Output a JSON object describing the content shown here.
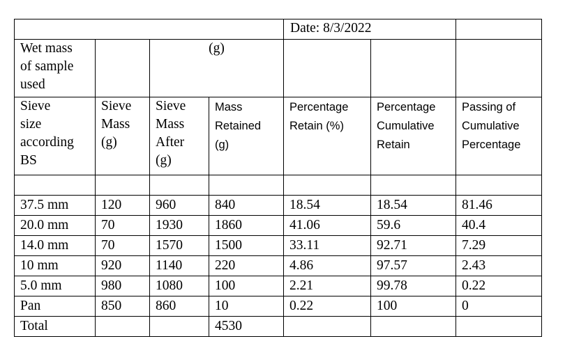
{
  "header": {
    "date": "Date: 8/3/2022",
    "wet_mass_label": "Wet mass\nof sample\nused",
    "unit": "(g)"
  },
  "columns": [
    "Sieve\nsize\naccording\nBS",
    "Sieve\nMass\n(g)",
    "Sieve\nMass\nAfter\n(g)",
    "Mass\nRetained\n(g)",
    "Percentage\nRetain (%)",
    "Percentage\nCumulative\nRetain",
    "Passing of\nCumulative\nPercentage"
  ],
  "rows": [
    [
      "37.5 mm",
      "120",
      "960",
      "840",
      "18.54",
      "18.54",
      "81.46"
    ],
    [
      "20.0 mm",
      "70",
      "1930",
      "1860",
      "41.06",
      "59.6",
      "40.4"
    ],
    [
      "14.0 mm",
      "70",
      "1570",
      "1500",
      "33.11",
      "92.71",
      "7.29"
    ],
    [
      "10 mm",
      "920",
      "1140",
      "220",
      "4.86",
      "97.57",
      "2.43"
    ],
    [
      "5.0 mm",
      "980",
      "1080",
      "100",
      "2.21",
      "99.78",
      "0.22"
    ],
    [
      "Pan",
      "850",
      "860",
      "10",
      "0.22",
      "100",
      "0"
    ]
  ],
  "total": {
    "label": "Total",
    "mass_retained": "4530"
  }
}
